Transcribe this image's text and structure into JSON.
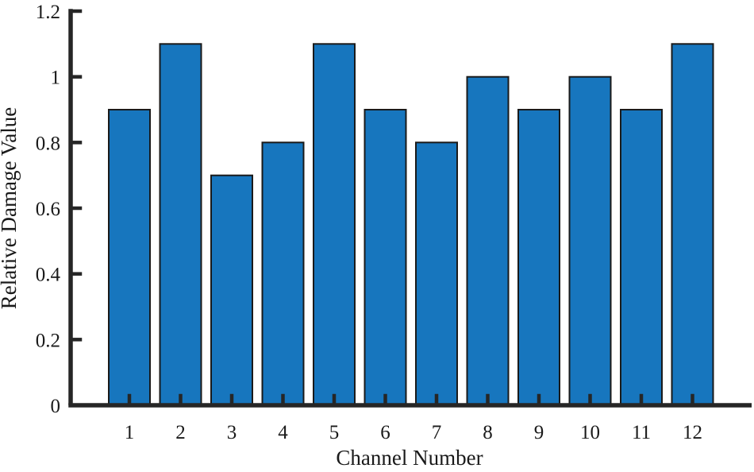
{
  "figure": {
    "description": "Bar chart of relative damage value per channel"
  },
  "chart_data": {
    "type": "bar",
    "title": "",
    "xlabel": "Channel Number",
    "ylabel": "Relative Damage Value",
    "categories": [
      "1",
      "2",
      "3",
      "4",
      "5",
      "6",
      "7",
      "8",
      "9",
      "10",
      "11",
      "12"
    ],
    "values": [
      0.9,
      1.1,
      0.7,
      0.8,
      1.1,
      0.9,
      0.8,
      1.0,
      0.9,
      1.0,
      0.9,
      1.1
    ],
    "ylim": [
      0,
      1.2
    ],
    "yticks": [
      0,
      0.2,
      0.4,
      0.6,
      0.8,
      1,
      1.2
    ],
    "ytick_labels": [
      "0",
      "0.2",
      "0.4",
      "0.6",
      "0.8",
      "1",
      "1.2"
    ],
    "grid": false,
    "legend": null,
    "bar_fill_color": "#1776BE",
    "bar_edge_color": "#1a1a1a",
    "axis_color": "#262626",
    "text_color": "#1a1a1a"
  }
}
